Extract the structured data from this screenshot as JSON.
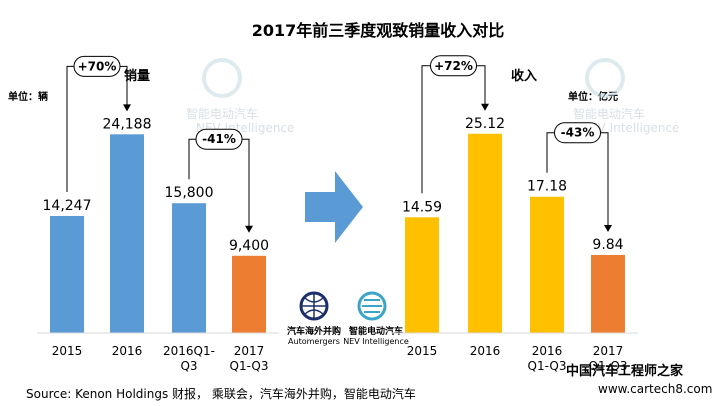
{
  "title": "2017年前三季度观致销量收入对比",
  "colors": {
    "blue": "#5b9bd5",
    "yellow": "#ffc000",
    "orange": "#ed7d31",
    "arrow": "#5b9bd5"
  },
  "watermarks": {
    "nev_cn": "智能电动汽车",
    "nev_en": "NEV Intelligence",
    "auto_cn": "汽车海外并购",
    "auto_en": "Automergers",
    "site_cn": "中国汽车工程师之家",
    "site_url": "www.cartech8.com"
  },
  "source": "Source: Kenon Holdings 财报， 乘联会，汽车海外并购，智能电动汽车",
  "chart_data": [
    {
      "type": "bar",
      "title": "销量",
      "unit_label": "单位：辆",
      "categories": [
        [
          "2015"
        ],
        [
          "2016"
        ],
        [
          "2016Q1-",
          "Q3"
        ],
        [
          "2017",
          "Q1-Q3"
        ]
      ],
      "values": [
        14247,
        24188,
        15800,
        9400
      ],
      "value_labels": [
        "14,247",
        "24,188",
        "15,800",
        "9,400"
      ],
      "bar_colors": [
        "#5b9bd5",
        "#5b9bd5",
        "#5b9bd5",
        "#ed7d31"
      ],
      "comparisons": [
        {
          "from": 0,
          "to": 1,
          "label": "+70%"
        },
        {
          "from": 2,
          "to": 3,
          "label": "-41%"
        }
      ],
      "ylim": [
        0,
        28000
      ]
    },
    {
      "type": "bar",
      "title": "收入",
      "unit_label": "单位：亿元",
      "categories": [
        [
          "2015"
        ],
        [
          "2016"
        ],
        [
          "2016",
          "Q1-Q3"
        ],
        [
          "2017",
          "Q1-Q3"
        ]
      ],
      "values": [
        14.59,
        25.12,
        17.18,
        9.84
      ],
      "value_labels": [
        "14.59",
        "25.12",
        "17.18",
        "9.84"
      ],
      "bar_colors": [
        "#ffc000",
        "#ffc000",
        "#ffc000",
        "#ed7d31"
      ],
      "comparisons": [
        {
          "from": 0,
          "to": 1,
          "label": "+72%"
        },
        {
          "from": 2,
          "to": 3,
          "label": "-43%"
        }
      ],
      "ylim": [
        0,
        29
      ]
    }
  ]
}
